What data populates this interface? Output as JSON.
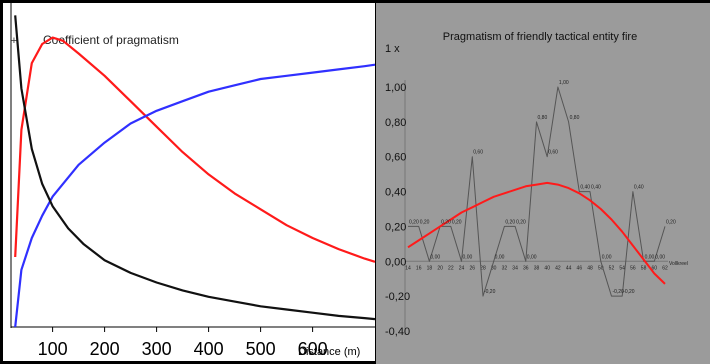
{
  "chart_data": [
    {
      "type": "line",
      "title": "Coefficient of pragmatism",
      "xlabel": "Distance (m)",
      "ylabel": "",
      "x_ticks": [
        "100",
        "200",
        "300",
        "400",
        "500",
        "600"
      ],
      "y_tick_mark": "+",
      "xlim": [
        20,
        720
      ],
      "grid": false,
      "series": [
        {
          "color": "#ff1a1a",
          "x": [
            28,
            40,
            60,
            80,
            100,
            120,
            150,
            200,
            250,
            300,
            350,
            400,
            450,
            500,
            550,
            600,
            650,
            700,
            720
          ],
          "y": [
            0.22,
            0.62,
            0.83,
            0.89,
            0.91,
            0.9,
            0.86,
            0.79,
            0.71,
            0.63,
            0.55,
            0.48,
            0.42,
            0.37,
            0.32,
            0.28,
            0.245,
            0.215,
            0.205
          ]
        },
        {
          "color": "#3030ff",
          "x": [
            28,
            40,
            60,
            80,
            100,
            150,
            200,
            250,
            300,
            350,
            400,
            450,
            500,
            550,
            600,
            650,
            700,
            720
          ],
          "y": [
            0.0,
            0.18,
            0.28,
            0.35,
            0.41,
            0.51,
            0.58,
            0.64,
            0.68,
            0.71,
            0.74,
            0.76,
            0.78,
            0.79,
            0.8,
            0.81,
            0.82,
            0.825
          ]
        },
        {
          "color": "#111111",
          "x": [
            28,
            40,
            60,
            80,
            100,
            130,
            160,
            200,
            250,
            300,
            350,
            400,
            450,
            500,
            550,
            600,
            650,
            700,
            720
          ],
          "y": [
            0.98,
            0.75,
            0.56,
            0.45,
            0.38,
            0.31,
            0.26,
            0.21,
            0.17,
            0.14,
            0.115,
            0.095,
            0.08,
            0.065,
            0.055,
            0.045,
            0.035,
            0.028,
            0.025
          ]
        }
      ]
    },
    {
      "type": "line",
      "title": "Pragmatism of friendly tactical entity fire",
      "unit_label": "1 x",
      "xlabel": "Vollkreel",
      "ylabel": "",
      "ylim": [
        -0.4,
        1.1
      ],
      "grid": false,
      "y_ticks": [
        "1,00",
        "0,80",
        "0,60",
        "0,40",
        "0,20",
        "0,00",
        "-0,20",
        "-0,40"
      ],
      "categories": [
        "14",
        "16",
        "18",
        "20",
        "22",
        "24",
        "26",
        "28",
        "30",
        "32",
        "34",
        "36",
        "38",
        "40",
        "42",
        "44",
        "46",
        "48",
        "50",
        "52",
        "54",
        "56",
        "58",
        "60",
        "62"
      ],
      "series": [
        {
          "color": "#555555",
          "values": [
            0.2,
            0.2,
            0.0,
            0.2,
            0.2,
            0.0,
            0.6,
            -0.2,
            0.0,
            0.2,
            0.2,
            0.0,
            0.8,
            0.6,
            1.0,
            0.8,
            0.4,
            0.4,
            0.0,
            -0.2,
            -0.2,
            0.4,
            0.0,
            0.0,
            0.2
          ],
          "labels": [
            "0,20",
            "0,20",
            "0,00",
            "0,20",
            "0,20",
            "0,00",
            "0,60",
            "-0,20",
            "0,00",
            "0,20",
            "0,20",
            "0,00",
            "0,80",
            "0,60",
            "1,00",
            "0,80",
            "0,40",
            "0,40",
            "0,00",
            "-0,20",
            "-0,20",
            "0,40",
            "0,00",
            "0,00",
            "0,20"
          ]
        },
        {
          "color": "#ff1a1a",
          "values": [
            0.08,
            0.12,
            0.16,
            0.2,
            0.24,
            0.28,
            0.31,
            0.34,
            0.37,
            0.39,
            0.41,
            0.43,
            0.44,
            0.45,
            0.44,
            0.42,
            0.39,
            0.35,
            0.3,
            0.24,
            0.17,
            0.09,
            0.01,
            -0.07,
            -0.13
          ]
        }
      ]
    }
  ]
}
